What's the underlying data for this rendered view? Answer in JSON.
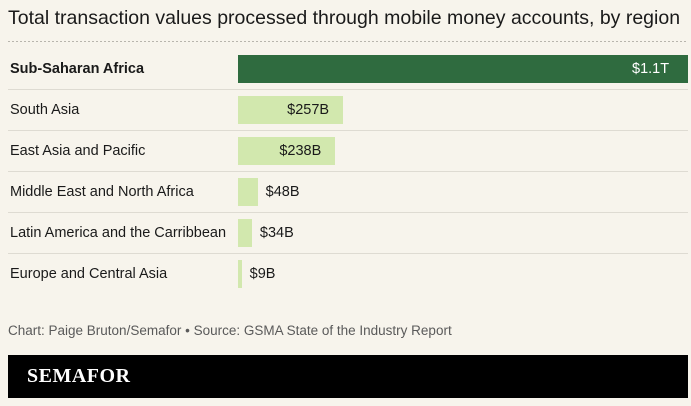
{
  "chart_data": {
    "type": "bar",
    "orientation": "horizontal",
    "title": "Total transaction values processed through mobile money accounts, by region",
    "categories": [
      "Sub-Saharan Africa",
      "South Asia",
      "East Asia and Pacific",
      "Middle East and North Africa",
      "Latin America and the Carribbean",
      "Europe and Central Asia"
    ],
    "values": [
      1100,
      257,
      238,
      48,
      34,
      9
    ],
    "value_unit": "billion USD",
    "data_labels": [
      "$1.1T",
      "$257B",
      "$238B",
      "$48B",
      "$34B",
      "$9B"
    ],
    "highlight": "Sub-Saharan Africa",
    "xlim": [
      0,
      1100
    ],
    "grid": false,
    "legend": "none"
  },
  "source": "Chart: Paige Bruton/Semafor • Source: GSMA State of the Industry Report",
  "brand": "SEMAFOR",
  "colors": {
    "highlight_bar": "#2f6b3f",
    "bar": "#d2e8ae",
    "background": "#f7f4ec",
    "footer": "#000000"
  }
}
